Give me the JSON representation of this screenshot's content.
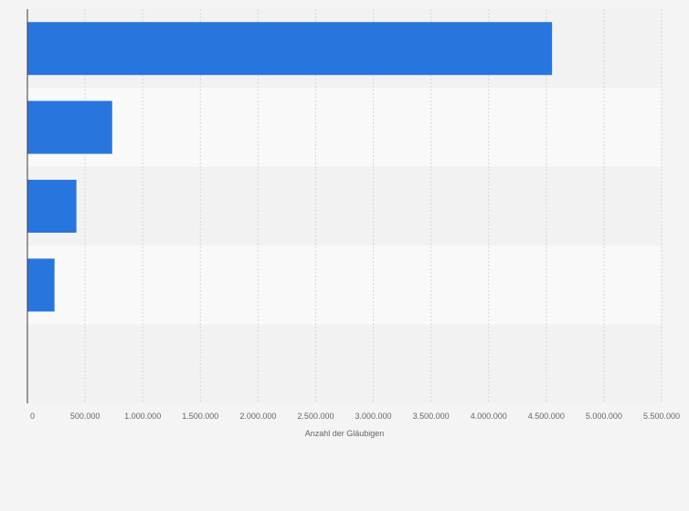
{
  "colors": {
    "bar": "#2876dd",
    "band_even": "#f2f2f2",
    "band_odd": "#f9f9f9",
    "grid": "#d6d6d6",
    "axis": "#3a3a3a"
  },
  "chart_data": {
    "type": "bar",
    "orientation": "horizontal",
    "categories": [
      "",
      "",
      "",
      "",
      ""
    ],
    "values": [
      4550000,
      735000,
      425000,
      235000,
      0
    ],
    "xlabel": "Anzahl der Gläubigen",
    "ylabel": "",
    "xlim": [
      0,
      5500000
    ],
    "xticks": [
      0,
      500000,
      1000000,
      1500000,
      2000000,
      2500000,
      3000000,
      3500000,
      4000000,
      4500000,
      5000000,
      5500000
    ],
    "xtick_labels": [
      "0",
      "500.000",
      "1.000.000",
      "1.500.000",
      "2.000.000",
      "2.500.000",
      "3.000.000",
      "3.500.000",
      "4.000.000",
      "4.500.000",
      "5.000.000",
      "5.500.000"
    ],
    "grid": true,
    "legend": "none"
  }
}
